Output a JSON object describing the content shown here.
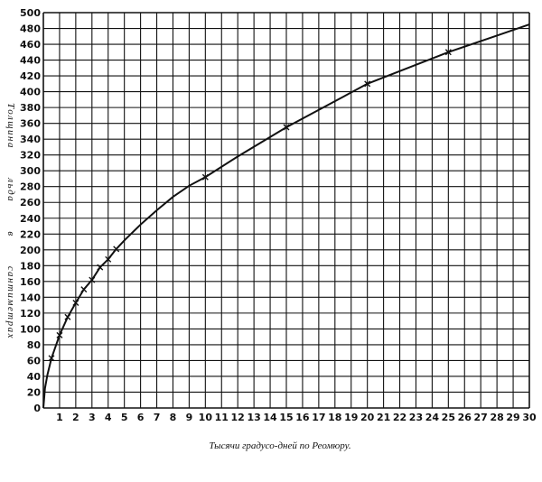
{
  "chart_data": {
    "type": "line",
    "title": "",
    "xlabel": "Тысячи градусо-дней по Реомюру.",
    "ylabel": "Толщина льда в сантиметрах",
    "xlim": [
      0,
      30
    ],
    "ylim": [
      0,
      500
    ],
    "grid": true,
    "x_ticks": [
      1,
      2,
      3,
      4,
      5,
      6,
      7,
      8,
      9,
      10,
      11,
      12,
      13,
      14,
      15,
      16,
      17,
      18,
      19,
      20,
      21,
      22,
      23,
      24,
      25,
      26,
      27,
      28,
      29,
      30
    ],
    "y_ticks": [
      0,
      20,
      40,
      60,
      80,
      100,
      120,
      140,
      160,
      180,
      200,
      220,
      240,
      260,
      280,
      300,
      320,
      340,
      360,
      380,
      400,
      420,
      440,
      460,
      480,
      500
    ],
    "y_tick_labels": [
      "0",
      "20",
      "40",
      "60",
      "80",
      "100",
      "120",
      "140",
      "160",
      "180",
      "200",
      "220",
      "240",
      "260",
      "280",
      "300",
      "320",
      "340",
      "360",
      "380",
      "400",
      "420",
      "440",
      "460",
      "480",
      "500"
    ],
    "curve": {
      "x": [
        0,
        0.1,
        0.25,
        0.5,
        1,
        1.5,
        2,
        2.5,
        3,
        3.5,
        4,
        4.5,
        5,
        6,
        7,
        8,
        9,
        10,
        12,
        15,
        18,
        20,
        22,
        25,
        28,
        30
      ],
      "y": [
        0,
        25,
        42,
        63,
        92,
        115,
        133,
        150,
        162,
        178,
        188,
        201,
        212,
        232,
        250,
        267,
        281,
        292,
        318,
        355,
        388,
        410,
        426,
        450,
        471,
        485
      ]
    },
    "observations": {
      "x": [
        0.5,
        1,
        1.5,
        2,
        2.5,
        3,
        3.5,
        4,
        4.5,
        10,
        15,
        20,
        25
      ],
      "y": [
        63,
        92,
        115,
        133,
        150,
        162,
        178,
        188,
        201,
        292,
        355,
        410,
        450
      ]
    },
    "colors": {
      "ink": "#111111",
      "background": "#ffffff"
    }
  }
}
